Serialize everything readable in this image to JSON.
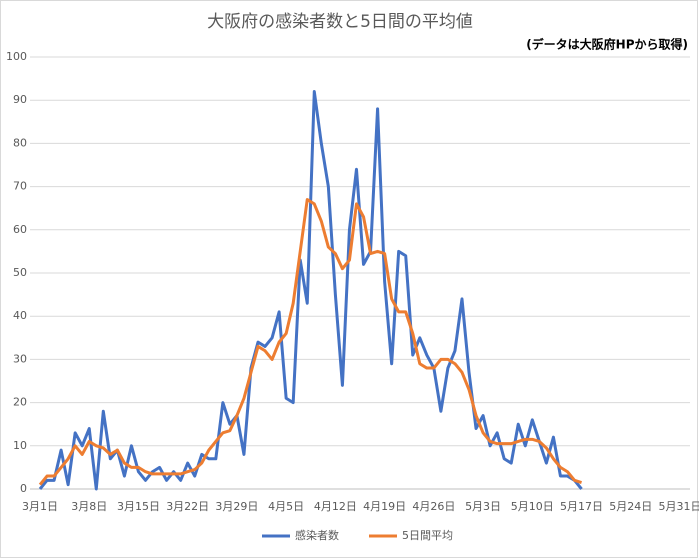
{
  "chart_data": {
    "type": "line",
    "title": "大阪府の感染者数と5日間の平均値",
    "subtitle": "(データは大阪府HPから取得)",
    "categories": [
      "3月1日",
      null,
      null,
      null,
      null,
      null,
      null,
      "3月8日",
      null,
      null,
      null,
      null,
      null,
      null,
      "3月15日",
      null,
      null,
      null,
      null,
      null,
      null,
      "3月22日",
      null,
      null,
      null,
      null,
      null,
      null,
      "3月29日",
      null,
      null,
      null,
      null,
      null,
      null,
      "4月5日",
      null,
      null,
      null,
      null,
      null,
      null,
      "4月12日",
      null,
      null,
      null,
      null,
      null,
      null,
      "4月19日",
      null,
      null,
      null,
      null,
      null,
      null,
      "4月26日",
      null,
      null,
      null,
      null,
      null,
      null,
      "5月3日",
      null,
      null,
      null,
      null,
      null,
      null,
      "5月10日",
      null,
      null,
      null,
      null,
      null,
      null,
      "5月17日",
      null,
      null,
      null,
      null,
      null,
      null,
      "5月24日",
      null,
      null,
      null,
      null,
      null,
      null,
      "5月31日"
    ],
    "series": [
      {
        "name": "感染者数",
        "color": "#4472c4",
        "values": [
          0,
          2,
          2,
          9,
          1,
          13,
          10,
          14,
          0,
          18,
          7,
          9,
          3,
          10,
          4,
          2,
          4,
          5,
          2,
          4,
          2,
          6,
          3,
          8,
          7,
          7,
          20,
          15,
          17,
          8,
          28,
          34,
          33,
          35,
          41,
          21,
          20,
          53,
          43,
          92,
          80,
          70,
          45,
          24,
          60,
          74,
          52,
          55,
          88,
          48,
          29,
          55,
          54,
          31,
          35,
          31,
          28,
          18,
          28,
          32,
          44,
          27,
          14,
          17,
          10,
          13,
          7,
          6,
          15,
          10,
          16,
          11,
          6,
          12,
          3,
          3,
          2,
          0,
          null,
          null,
          null,
          null,
          null,
          null,
          null,
          null,
          null,
          null,
          null,
          null,
          null,
          null
        ]
      },
      {
        "name": "5日間平均",
        "color": "#ed7d31",
        "values": [
          1,
          3,
          3,
          5,
          7,
          10,
          8,
          11,
          10,
          9.5,
          8,
          9,
          6,
          5,
          5,
          4,
          3.5,
          3.5,
          3.5,
          3.5,
          3.5,
          4,
          4.5,
          6,
          9,
          11,
          13,
          13.5,
          17,
          21,
          27,
          33,
          32,
          30,
          34,
          36,
          43,
          55,
          67,
          66,
          62,
          56,
          54.5,
          51,
          53,
          66,
          63,
          54.5,
          55,
          54.5,
          44,
          41,
          41,
          36,
          29,
          28,
          28,
          30,
          30,
          29,
          27,
          23,
          17,
          13,
          11,
          10.5,
          10.5,
          10.5,
          11,
          11.5,
          11.5,
          11,
          9.5,
          7,
          5,
          4,
          2,
          1.5,
          null,
          null,
          null,
          null,
          null,
          null,
          null,
          null,
          null,
          null,
          null,
          null,
          null,
          null
        ]
      }
    ],
    "ylim": [
      0,
      100
    ],
    "yticks": [
      0,
      10,
      20,
      30,
      40,
      50,
      60,
      70,
      80,
      90,
      100
    ],
    "grid": true
  }
}
